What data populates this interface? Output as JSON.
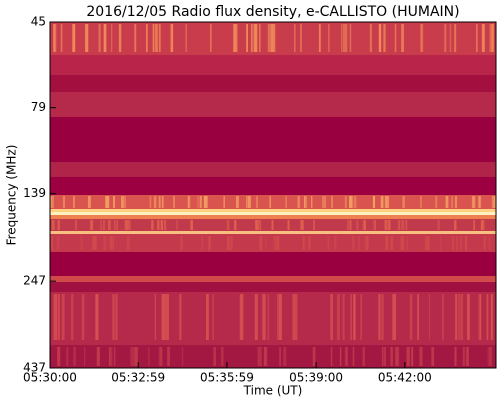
{
  "chart_data": {
    "type": "spectrogram",
    "title": "2016/12/05  Radio flux density, e-CALLISTO (HUMAIN)",
    "x_label": "Time (UT)",
    "y_label": "Frequency (MHz)",
    "xlim": [
      "05:30:00",
      "05:45:05"
    ],
    "xticks": [
      "05:30:00",
      "05:32:59",
      "05:35:59",
      "05:39:00",
      "05:42:00"
    ],
    "ylim": [
      45,
      437
    ],
    "yticks": [
      45,
      79,
      139,
      247,
      437
    ],
    "y_scale": "log",
    "y_inverted": true
  }
}
